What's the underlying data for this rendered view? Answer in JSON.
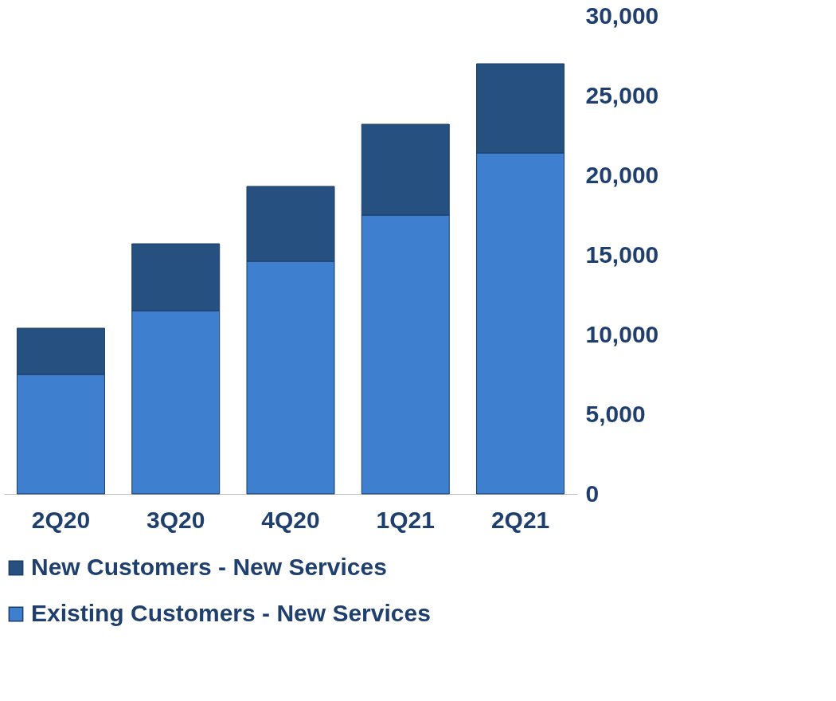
{
  "chart_data": {
    "type": "bar",
    "stacked": true,
    "categories": [
      "2Q20",
      "3Q20",
      "4Q20",
      "1Q21",
      "2Q21"
    ],
    "series": [
      {
        "name": "Existing Customers - New Services",
        "color": "#3f7fcf",
        "values": [
          7500,
          11500,
          14600,
          17500,
          21400
        ]
      },
      {
        "name": "New Customers - New Services",
        "color": "#25507f",
        "values": [
          2900,
          4200,
          4700,
          5700,
          5600
        ]
      }
    ],
    "ylim": [
      0,
      30000
    ],
    "yticks": [
      0,
      {
        "value": 5000,
        "label": "5,000"
      },
      {
        "value": 10000,
        "label": "10,000"
      },
      {
        "value": 15000,
        "label": "15,000"
      },
      {
        "value": 20000,
        "label": "20,000"
      },
      {
        "value": 25000,
        "label": "25,000"
      },
      {
        "value": 30000,
        "label": "30,000"
      }
    ],
    "grid": false,
    "legend": "bottom"
  }
}
